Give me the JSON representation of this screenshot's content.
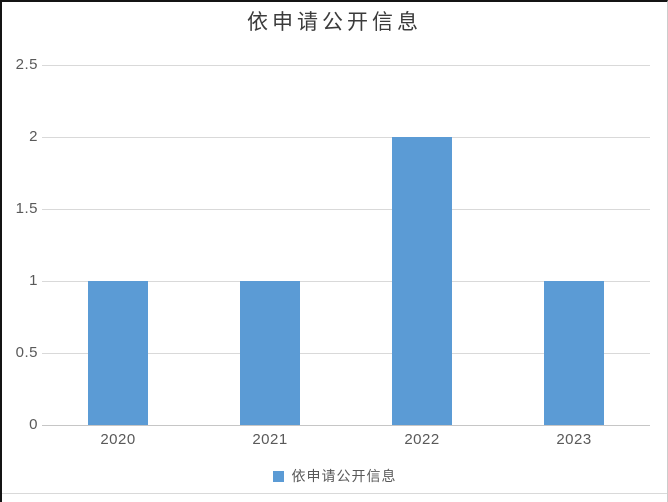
{
  "chart_data": {
    "type": "bar",
    "title": "依申请公开信息",
    "categories": [
      "2020",
      "2021",
      "2022",
      "2023"
    ],
    "series": [
      {
        "name": "依申请公开信息",
        "values": [
          1,
          1,
          2,
          1
        ],
        "color": "#5b9bd5"
      }
    ],
    "xlabel": "",
    "ylabel": "",
    "ylim": [
      0,
      2.5
    ],
    "yticks": [
      0,
      0.5,
      1,
      1.5,
      2,
      2.5
    ],
    "grid": true,
    "legend_position": "bottom",
    "gridline_color": "#d9d9d9",
    "axis_line_color": "#c6c6c6",
    "tick_label_color": "#595959",
    "title_color": "#3b3b3b"
  },
  "legend": {
    "items": [
      {
        "label": "依申请公开信息",
        "color": "#5b9bd5"
      }
    ]
  }
}
